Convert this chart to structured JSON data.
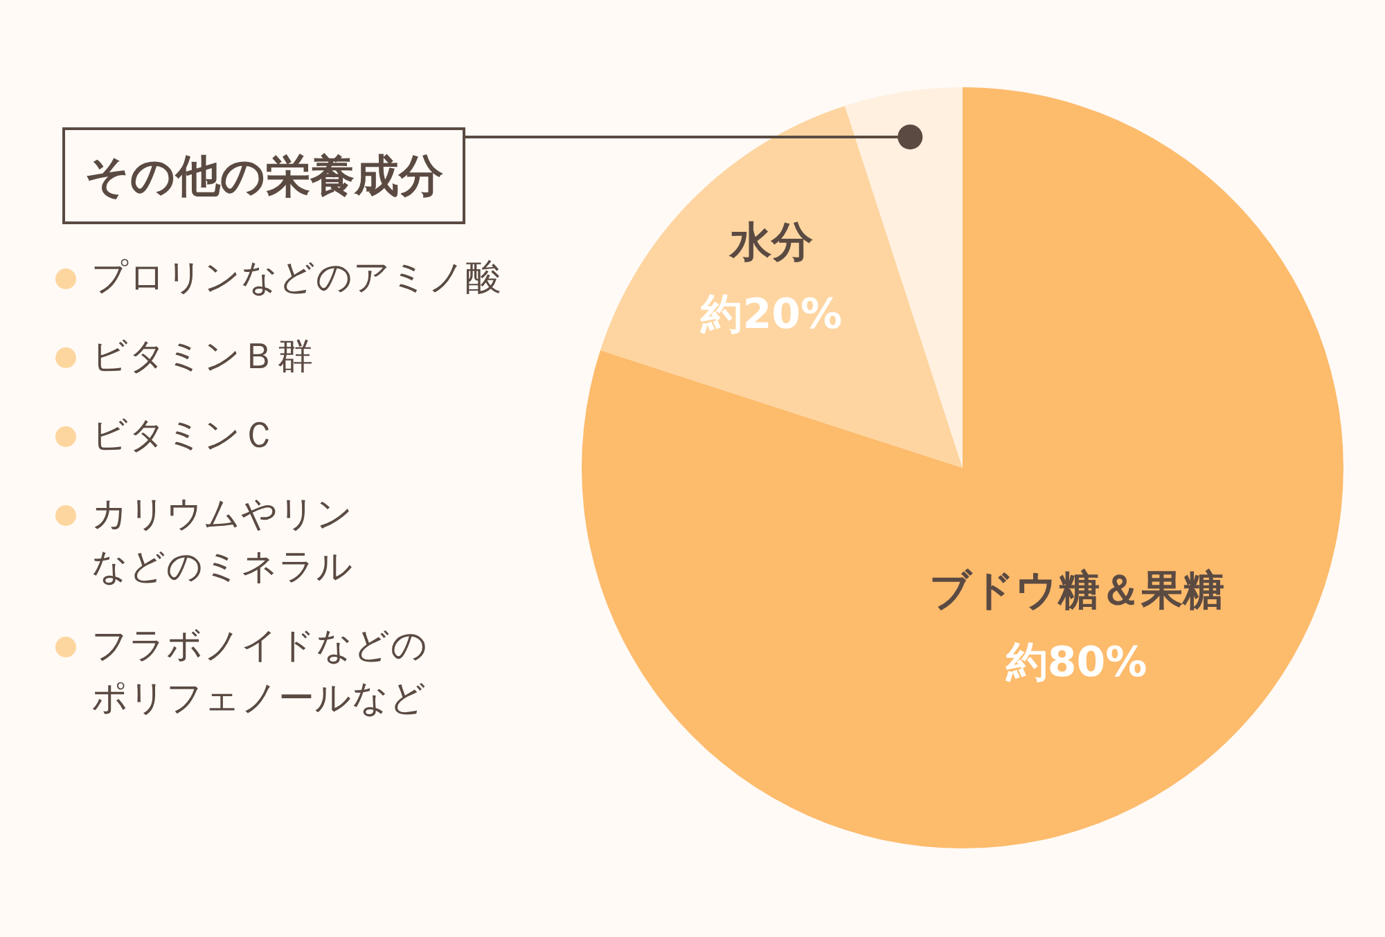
{
  "chart_data": {
    "type": "pie",
    "categories": [
      "ブドウ糖＆果糖",
      "水分",
      "その他の栄養成分"
    ],
    "values": [
      80,
      15,
      5
    ],
    "value_labels": [
      "約80%",
      "約20%",
      null
    ],
    "colors": [
      "#fdbb6c",
      "#fed5a0",
      "#fff0e0"
    ],
    "annotations": [
      "プロリンなどのアミノ酸",
      "ビタミンＢ群",
      "ビタミンＣ",
      "カリウムやリンなどのミネラル",
      "フラボノイドなどのポリフェノールなど"
    ]
  }
}
